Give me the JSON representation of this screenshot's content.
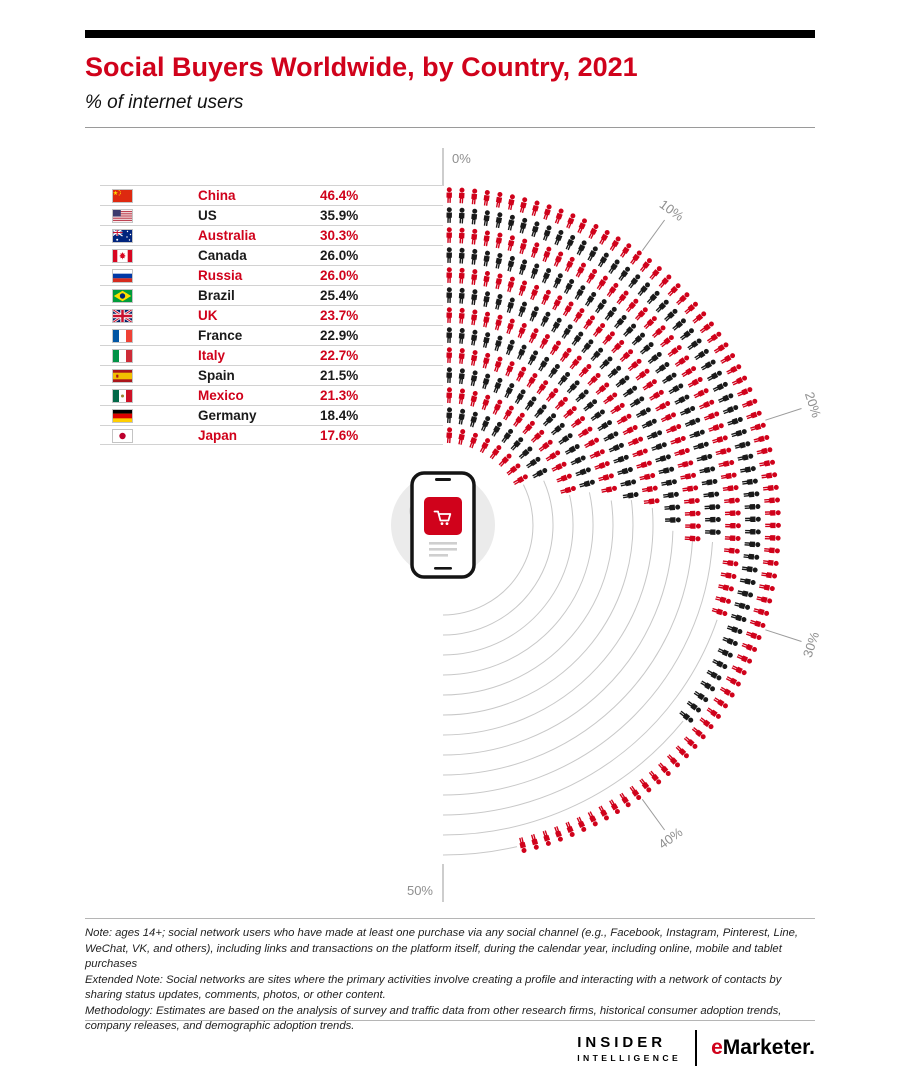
{
  "header": {
    "title": "Social Buyers Worldwide, by Country, 2021",
    "subtitle": "% of internet users"
  },
  "chart_data": {
    "type": "radial-pictogram-bar",
    "title": "Social Buyers Worldwide, by Country, 2021",
    "unit": "% of internet users",
    "layout": {
      "shape": "semicircle",
      "start": "top",
      "direction": "clockwise",
      "rings": "outermost = first country"
    },
    "scale": {
      "min": 0,
      "max": 50,
      "tick_step": 10,
      "tick_labels": [
        "0%",
        "10%",
        "20%",
        "30%",
        "40%",
        "50%"
      ]
    },
    "countries": [
      {
        "name": "China",
        "value": 46.4,
        "label": "46.4%",
        "flag": "cn",
        "color": "red"
      },
      {
        "name": "US",
        "value": 35.9,
        "label": "35.9%",
        "flag": "us",
        "color": "black"
      },
      {
        "name": "Australia",
        "value": 30.3,
        "label": "30.3%",
        "flag": "au",
        "color": "red"
      },
      {
        "name": "Canada",
        "value": 26.0,
        "label": "26.0%",
        "flag": "ca",
        "color": "black"
      },
      {
        "name": "Russia",
        "value": 26.0,
        "label": "26.0%",
        "flag": "ru",
        "color": "red"
      },
      {
        "name": "Brazil",
        "value": 25.4,
        "label": "25.4%",
        "flag": "br",
        "color": "black"
      },
      {
        "name": "UK",
        "value": 23.7,
        "label": "23.7%",
        "flag": "gb",
        "color": "red"
      },
      {
        "name": "France",
        "value": 22.9,
        "label": "22.9%",
        "flag": "fr",
        "color": "black"
      },
      {
        "name": "Italy",
        "value": 22.7,
        "label": "22.7%",
        "flag": "it",
        "color": "red"
      },
      {
        "name": "Spain",
        "value": 21.5,
        "label": "21.5%",
        "flag": "es",
        "color": "black"
      },
      {
        "name": "Mexico",
        "value": 21.3,
        "label": "21.3%",
        "flag": "mx",
        "color": "red"
      },
      {
        "name": "Germany",
        "value": 18.4,
        "label": "18.4%",
        "flag": "de",
        "color": "black"
      },
      {
        "name": "Japan",
        "value": 17.6,
        "label": "17.6%",
        "flag": "jp",
        "color": "red"
      }
    ],
    "colors": {
      "red": "#d0021b",
      "black": "#1a1a1a",
      "track": "#c8c8c8",
      "tick": "#9b9b9b",
      "tick_label": "#8f8f8f"
    },
    "center_icon": "mobile-phone-shopping-cart-on-globe"
  },
  "notes": {
    "note": "Note: ages 14+; social network users who have made at least one purchase via any social channel (e.g., Facebook, Instagram, Pinterest, Line, WeChat, VK, and others), including links and transactions on the platform itself, during the calendar year, including online, mobile and tablet purchases",
    "extended": "Extended Note: Social networks are sites where the primary activities involve creating a profile and interacting with a network of contacts by sharing status updates, comments, photos, or other content.",
    "methodology": "Methodology: Estimates are based on the analysis of survey and traffic data from other research firms, historical consumer adoption trends, company releases, and demographic adoption trends."
  },
  "footer": {
    "brand_line1": "INSIDER",
    "brand_line2": "INTELLIGENCE",
    "emarketer_e": "e",
    "emarketer_rest": "Marketer."
  }
}
